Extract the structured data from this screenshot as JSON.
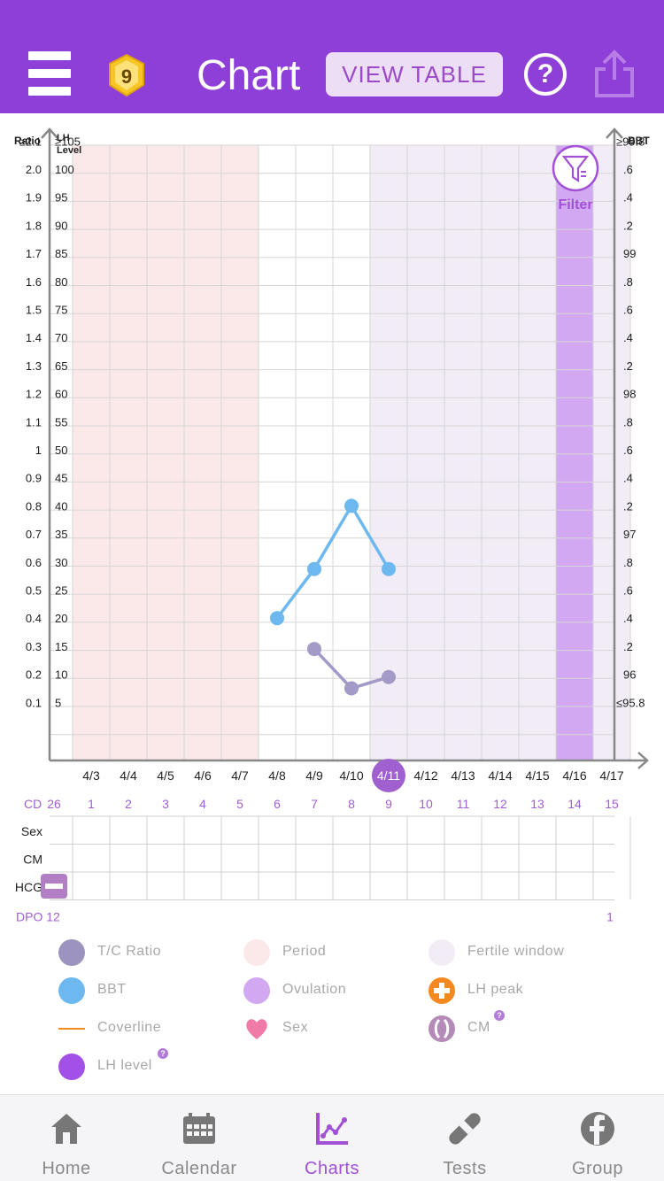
{
  "header": {
    "title": "Chart",
    "badge_number": "9",
    "view_table_label": "VIEW TABLE",
    "help_label": "?"
  },
  "axes": {
    "left_ratio_header": "Ratio",
    "left_lh_header_line1": "LH",
    "left_lh_header_line2": "Level",
    "right_header": "BBT",
    "ratio_labels": [
      "≥2.1",
      "2.0",
      "1.9",
      "1.8",
      "1.7",
      "1.6",
      "1.5",
      "1.4",
      "1.3",
      "1.2",
      "1.1",
      "1",
      "0.9",
      "0.8",
      "0.7",
      "0.6",
      "0.5",
      "0.4",
      "0.3",
      "0.2",
      "0.1"
    ],
    "lh_labels": [
      "≥105",
      "100",
      "95",
      "90",
      "85",
      "80",
      "75",
      "70",
      "65",
      "60",
      "55",
      "50",
      "45",
      "40",
      "35",
      "30",
      "25",
      "20",
      "15",
      "10",
      "5"
    ],
    "bbt_labels": [
      "≥99.8",
      ".6",
      ".4",
      ".2",
      "99",
      ".8",
      ".6",
      ".4",
      ".2",
      "98",
      ".8",
      ".6",
      ".4",
      ".2",
      "97",
      ".8",
      ".6",
      ".4",
      ".2",
      "96",
      "≤95.8"
    ]
  },
  "filter_label": "Filter",
  "dates": [
    "4/3",
    "4/4",
    "4/5",
    "4/6",
    "4/7",
    "4/8",
    "4/9",
    "4/10",
    "4/11",
    "4/12",
    "4/13",
    "4/14",
    "4/15",
    "4/16",
    "4/17"
  ],
  "selected_date": "4/11",
  "cd_label": "CD",
  "cd_values": [
    "26",
    "1",
    "2",
    "3",
    "4",
    "5",
    "6",
    "7",
    "8",
    "9",
    "10",
    "11",
    "12",
    "13",
    "14",
    "15"
  ],
  "rows": {
    "sex": "Sex",
    "cm": "CM",
    "hcg": "HCG"
  },
  "dpo_label": "DPO 12",
  "dpo_end": "1",
  "chart_data": {
    "type": "line",
    "x": [
      "4/8",
      "4/9",
      "4/10",
      "4/11"
    ],
    "series": [
      {
        "name": "BBT",
        "color": "#6cb8ef",
        "values": [
          96.6,
          96.95,
          97.4,
          96.95
        ]
      },
      {
        "name": "T/C Ratio",
        "color": "#a49ac8",
        "x": [
          "4/9",
          "4/10",
          "4/11"
        ],
        "values": [
          0.39,
          0.25,
          0.29
        ]
      }
    ],
    "ratio_range": [
      0,
      2.1
    ],
    "lh_range": [
      0,
      105
    ],
    "bbt_range": [
      95.8,
      99.8
    ],
    "period_days": [
      "4/3",
      "4/4",
      "4/5",
      "4/6",
      "4/7"
    ],
    "fertile_window": [
      "4/11",
      "4/12",
      "4/13",
      "4/14",
      "4/15",
      "4/16",
      "4/17"
    ],
    "ovulation_day": "4/16",
    "hcg_negative_day": "4/2"
  },
  "legend": [
    {
      "label": "T/C Ratio",
      "icon": "circle",
      "color": "#9c93c0"
    },
    {
      "label": "Period",
      "icon": "circle",
      "color": "#fbe9ea"
    },
    {
      "label": "Fertile window",
      "icon": "circle",
      "color": "#f2ecf7"
    },
    {
      "label": "BBT",
      "icon": "circle",
      "color": "#6cb8ef"
    },
    {
      "label": "Ovulation",
      "icon": "circle",
      "color": "#d2a8f3"
    },
    {
      "label": "LH peak",
      "icon": "plus-circle",
      "color": "#f5881f"
    },
    {
      "label": "Coverline",
      "icon": "line",
      "color": "#f5881f"
    },
    {
      "label": "Sex",
      "icon": "heart",
      "color": "#f07aa8"
    },
    {
      "label": "CM",
      "icon": "cm-drops",
      "color": "#b48ab8"
    },
    {
      "label": "LH level",
      "icon": "circle",
      "color": "#a250e8"
    }
  ],
  "nav": [
    {
      "label": "Home",
      "icon": "home-icon",
      "active": false
    },
    {
      "label": "Calendar",
      "icon": "calendar-icon",
      "active": false
    },
    {
      "label": "Charts",
      "icon": "charts-icon",
      "active": true
    },
    {
      "label": "Tests",
      "icon": "tests-icon",
      "active": false
    },
    {
      "label": "Group",
      "icon": "group-icon",
      "active": false
    }
  ],
  "colors": {
    "header": "#8e3fd8",
    "accent": "#a04fd6",
    "period": "#fbe9ea",
    "fertile": "#f2ecf7",
    "ovulation": "#d2a8f3"
  }
}
